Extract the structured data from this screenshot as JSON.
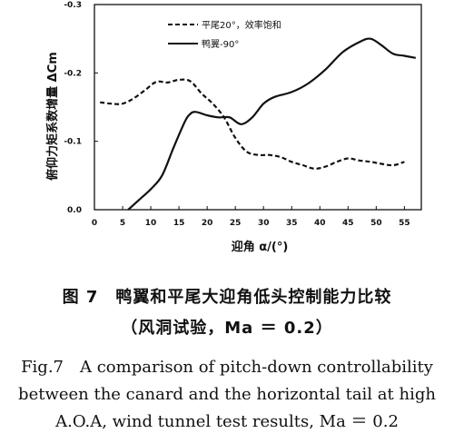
{
  "chart_data": {
    "type": "line",
    "xlabel": "迎角 α/(°)",
    "ylabel": "俯仰力矩系数增量 ΔCm",
    "xlim": [
      0,
      58
    ],
    "ylim": [
      0.0,
      -0.3
    ],
    "x_ticks": [
      "0",
      "5",
      "10",
      "15",
      "20",
      "25",
      "30",
      "35",
      "40",
      "45",
      "50",
      "55"
    ],
    "y_ticks": [
      "0.0",
      "-0.1",
      "-0.2",
      "-0.3"
    ],
    "legend": {
      "placement": "top-center"
    },
    "grid": false,
    "series": [
      {
        "name": "平尾20°，效率饱和",
        "style": "dashed",
        "x": [
          1,
          3,
          5,
          7,
          9,
          11,
          13,
          15,
          17,
          19,
          21,
          23,
          25,
          27,
          29,
          31,
          33,
          35,
          37,
          39,
          41,
          43,
          45,
          47,
          49,
          51,
          53,
          55
        ],
        "y": [
          -0.157,
          -0.155,
          -0.155,
          -0.163,
          -0.175,
          -0.187,
          -0.186,
          -0.19,
          -0.188,
          -0.17,
          -0.155,
          -0.135,
          -0.105,
          -0.085,
          -0.08,
          -0.08,
          -0.077,
          -0.07,
          -0.065,
          -0.06,
          -0.063,
          -0.07,
          -0.075,
          -0.072,
          -0.07,
          -0.067,
          -0.065,
          -0.07
        ]
      },
      {
        "name": "鸭翼-90°",
        "style": "solid",
        "x": [
          6,
          8,
          10,
          12,
          14,
          16,
          17,
          18,
          20,
          22,
          24,
          26,
          28,
          30,
          32,
          35,
          38,
          41,
          44,
          47,
          49,
          51,
          53,
          55,
          57
        ],
        "y": [
          0.0,
          -0.015,
          -0.03,
          -0.05,
          -0.09,
          -0.128,
          -0.14,
          -0.143,
          -0.138,
          -0.135,
          -0.135,
          -0.125,
          -0.135,
          -0.155,
          -0.165,
          -0.172,
          -0.185,
          -0.205,
          -0.23,
          -0.245,
          -0.25,
          -0.24,
          -0.228,
          -0.225,
          -0.222
        ]
      }
    ]
  },
  "caption": {
    "cn_line1": "图 7　鸭翼和平尾大迎角低头控制能力比较",
    "cn_line2": "（风洞试验，Ma ＝ 0.2）",
    "en_line1": "Fig.7　A comparison of pitch-down controllability",
    "en_line2": "between the canard and the horizontal tail at high",
    "en_line3": "A.O.A, wind tunnel test results, Ma ＝ 0.2"
  }
}
